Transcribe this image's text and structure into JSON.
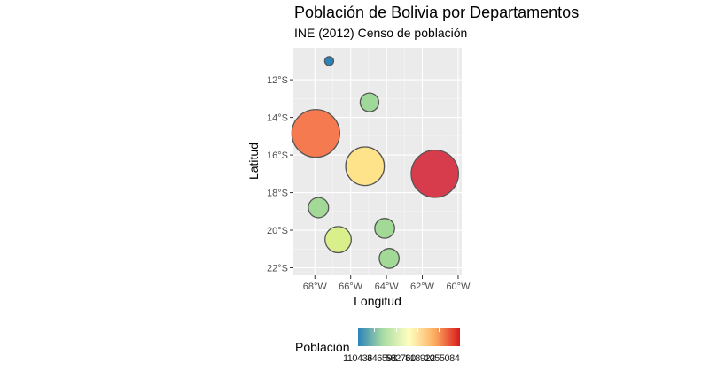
{
  "title": "Población de Bolivia por Departamentos",
  "subtitle": "INE (2012) Censo de población",
  "chart_data": {
    "type": "scatter",
    "xlabel": "Longitud",
    "ylabel": "Latitud",
    "x_ticks": [
      "68°W",
      "66°W",
      "64°W",
      "62°W",
      "60°W"
    ],
    "y_ticks": [
      "12°S",
      "14°S",
      "16°S",
      "18°S",
      "20°S",
      "22°S"
    ],
    "xlim": [
      -69.2,
      -59.8
    ],
    "ylim": [
      -22.4,
      -10.3
    ],
    "grid": true,
    "legend_title": "Población",
    "legend_position": "bottom",
    "colorscale": [
      "#2b83ba",
      "#abdda4",
      "#ffffbf",
      "#fdae61",
      "#d7191c"
    ],
    "legend_labels": [
      "110436",
      "346598",
      "582760",
      "818922",
      "1055084"
    ],
    "points": [
      {
        "lon": -67.2,
        "lat": -11.0,
        "value": 110436,
        "color": "#2b83ba"
      },
      {
        "lon": -64.95,
        "lat": -13.2,
        "value": 422008,
        "color": "#9fd899"
      },
      {
        "lon": -67.95,
        "lat": -14.85,
        "value": 2706351,
        "color": "#f57a50"
      },
      {
        "lon": -65.2,
        "lat": -16.6,
        "value": 1762761,
        "color": "#fee38a"
      },
      {
        "lon": -61.3,
        "lat": -17.0,
        "value": 2655084,
        "color": "#d73c4c"
      },
      {
        "lon": -67.8,
        "lat": -18.8,
        "value": 494587,
        "color": "#a3d997"
      },
      {
        "lon": -64.1,
        "lat": -19.9,
        "value": 482196,
        "color": "#a2d996"
      },
      {
        "lon": -66.7,
        "lat": -20.5,
        "value": 828093,
        "color": "#d9ef8b"
      },
      {
        "lon": -63.85,
        "lat": -21.5,
        "value": 483518,
        "color": "#a2d996"
      }
    ]
  }
}
